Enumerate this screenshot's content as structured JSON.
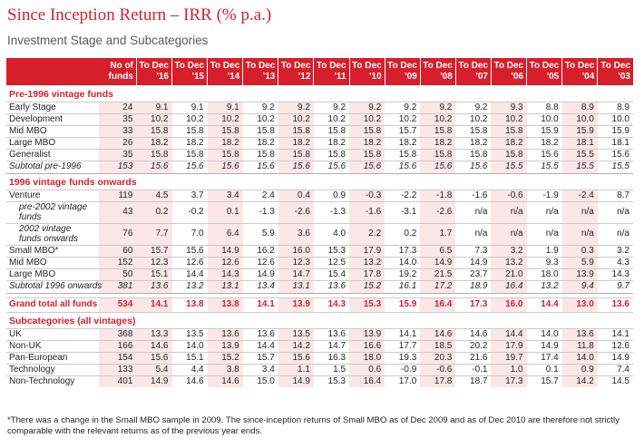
{
  "title": "Since Inception Return – IRR (% p.a.)",
  "subtitle": "Investment Stage and Subcategories",
  "header": {
    "funds_label": "No of funds",
    "years": [
      "To Dec '16",
      "To Dec '15",
      "To Dec '14",
      "To Dec '13",
      "To Dec '12",
      "To Dec '11",
      "To Dec '10",
      "To Dec '09",
      "To Dec '08",
      "To Dec '07",
      "To Dec '06",
      "To Dec '05",
      "To Dec '04",
      "To Dec '03"
    ]
  },
  "sections": {
    "pre1996": {
      "title": "Pre-1996 vintage funds",
      "rows": [
        {
          "label": "Early Stage",
          "funds": "24",
          "values": [
            "9.1",
            "9.1",
            "9.1",
            "9.2",
            "9.2",
            "9.2",
            "9.2",
            "9.2",
            "9.2",
            "9.2",
            "9.3",
            "8.8",
            "8.9",
            "8.9"
          ]
        },
        {
          "label": "Development",
          "funds": "35",
          "values": [
            "10.2",
            "10.2",
            "10.2",
            "10.2",
            "10.2",
            "10.2",
            "10.2",
            "10.2",
            "10.2",
            "10.2",
            "10.2",
            "10.0",
            "10.0",
            "10.0"
          ]
        },
        {
          "label": "Mid MBO",
          "funds": "33",
          "values": [
            "15.8",
            "15.8",
            "15.8",
            "15.8",
            "15.8",
            "15.8",
            "15.8",
            "15.7",
            "15.8",
            "15.8",
            "15.8",
            "15.9",
            "15.9",
            "15.9"
          ]
        },
        {
          "label": "Large MBO",
          "funds": "26",
          "values": [
            "18.2",
            "18.2",
            "18.2",
            "18.2",
            "18.2",
            "18.2",
            "18.2",
            "18.2",
            "18.2",
            "18.2",
            "18.2",
            "18.2",
            "18.1",
            "18.1"
          ]
        },
        {
          "label": "Generalist",
          "funds": "35",
          "values": [
            "15.8",
            "15.8",
            "15.8",
            "15.8",
            "15.8",
            "15.8",
            "15.8",
            "15.8",
            "15.8",
            "15.8",
            "15.8",
            "15.6",
            "15.5",
            "15.6"
          ]
        }
      ],
      "subtotal": {
        "label": "Subtotal pre-1996",
        "funds": "153",
        "values": [
          "15.6",
          "15.6",
          "15.6",
          "15.6",
          "15.6",
          "15.6",
          "15.6",
          "15.6",
          "15.6",
          "15.6",
          "15.5",
          "15.5",
          "15.5",
          "15.5"
        ]
      }
    },
    "post1996": {
      "title": "1996 vintage funds onwards",
      "rows": [
        {
          "label": "Venture",
          "funds": "119",
          "values": [
            "4.5",
            "3.7",
            "3.4",
            "2.4",
            "0.4",
            "0.9",
            "-0.3",
            "-2.2",
            "-1.8",
            "-1.6",
            "-0.6",
            "-1.9",
            "-2.4",
            "8.7"
          ]
        },
        {
          "label": "pre-2002 vintage funds",
          "funds": "43",
          "values": [
            "0.2",
            "-0.2",
            "0.1",
            "-1.3",
            "-2.6",
            "-1.3",
            "-1.6",
            "-3.1",
            "-2.6",
            "n/a",
            "n/a",
            "n/a",
            "n/a",
            "n/a"
          ]
        },
        {
          "label": "2002 vintage funds onwards",
          "funds": "76",
          "values": [
            "7.7",
            "7.0",
            "6.4",
            "5.9",
            "3.6",
            "4.0",
            "2.2",
            "0.2",
            "1.7",
            "n/a",
            "n/a",
            "n/a",
            "n/a",
            "n/a"
          ]
        },
        {
          "label": "Small MBO*",
          "funds": "60",
          "values": [
            "15.7",
            "15.6",
            "14.9",
            "16.2",
            "16.0",
            "15.3",
            "17.9",
            "17.3",
            "6.5",
            "7.3",
            "3.2",
            "1.9",
            "0.3",
            "3.2"
          ]
        },
        {
          "label": "Mid MBO",
          "funds": "152",
          "values": [
            "12.3",
            "12.6",
            "12.6",
            "12.6",
            "12.3",
            "12.5",
            "13.2",
            "14.0",
            "14.9",
            "14.9",
            "13.2",
            "9.3",
            "5.9",
            "4.3"
          ]
        },
        {
          "label": "Large MBO",
          "funds": "50",
          "values": [
            "15.1",
            "14.4",
            "14.3",
            "14.9",
            "14.7",
            "15.4",
            "17.8",
            "19.2",
            "21.5",
            "23.7",
            "21.0",
            "18.0",
            "13.9",
            "14.3"
          ]
        }
      ],
      "subtotal": {
        "label": "Subtotal 1996 onwards",
        "funds": "381",
        "values": [
          "13.6",
          "13.2",
          "13.1",
          "13.4",
          "13.1",
          "13.6",
          "15.2",
          "16.1",
          "17.2",
          "18.9",
          "16.4",
          "13.2",
          "9.4",
          "9.7"
        ]
      }
    },
    "grand": {
      "label": "Grand total all funds",
      "funds": "534",
      "values": [
        "14.1",
        "13.8",
        "13.8",
        "14.1",
        "13.9",
        "14.3",
        "15.3",
        "15.9",
        "16.4",
        "17.3",
        "16.0",
        "14.4",
        "13.0",
        "13.6"
      ]
    },
    "subcategories": {
      "title": "Subcategories (all vintages)",
      "rows": [
        {
          "label": "UK",
          "funds": "368",
          "values": [
            "13.3",
            "13.5",
            "13.6",
            "13.6",
            "13.5",
            "13.6",
            "13.9",
            "14.1",
            "14.6",
            "14.6",
            "14.4",
            "14.0",
            "13.6",
            "14.1"
          ]
        },
        {
          "label": "Non-UK",
          "funds": "166",
          "values": [
            "14.6",
            "14.0",
            "13.9",
            "14.4",
            "14.2",
            "14.7",
            "16.6",
            "17.7",
            "18.5",
            "20.2",
            "17.9",
            "14.9",
            "11.8",
            "12.6"
          ]
        },
        {
          "label": "Pan-European",
          "funds": "154",
          "values": [
            "15.6",
            "15.1",
            "15.2",
            "15.7",
            "15.6",
            "16.3",
            "18.0",
            "19.3",
            "20.3",
            "21.6",
            "19.7",
            "17.4",
            "14.0",
            "14.9"
          ]
        },
        {
          "label": "Technology",
          "funds": "133",
          "values": [
            "5.4",
            "4.4",
            "3.8",
            "3.4",
            "1.1",
            "1.5",
            "0.6",
            "-0.9",
            "-0.6",
            "-0.1",
            "1.0",
            "0.1",
            "0.9",
            "7.4"
          ]
        },
        {
          "label": "Non-Technology",
          "funds": "401",
          "values": [
            "14.9",
            "14.6",
            "14.6",
            "15.0",
            "14.9",
            "15.3",
            "16.4",
            "17.0",
            "17.8",
            "18.7",
            "17.3",
            "15.7",
            "14.2",
            "14.5"
          ]
        }
      ]
    }
  },
  "footnote": "*There was a change in the Small MBO sample in 2009. The since-inception returns of Small MBO as of Dec 2009 and as of Dec 2010 are therefore not strictly comparable with the relevant returns as of the previous year ends."
}
